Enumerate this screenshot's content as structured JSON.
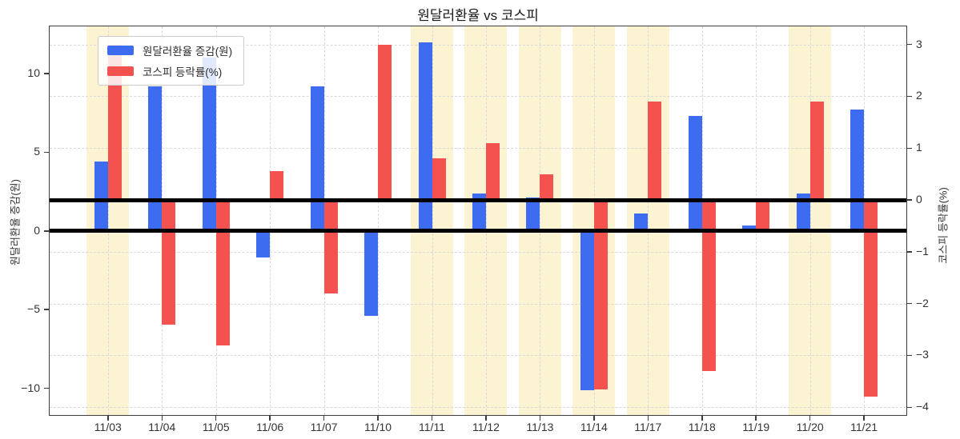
{
  "chart_data": {
    "type": "bar",
    "title": "원달러환율 vs 코스피",
    "categories": [
      "11/03",
      "11/04",
      "11/05",
      "11/06",
      "11/07",
      "11/10",
      "11/11",
      "11/12",
      "11/13",
      "11/14",
      "11/17",
      "11/18",
      "11/19",
      "11/20",
      "11/21"
    ],
    "series": [
      {
        "name": "원달러환율 증감(원)",
        "axis": "left",
        "unit": "원",
        "color": "#3E6CF1",
        "values": [
          4.4,
          9.2,
          11.0,
          -1.7,
          9.2,
          -5.4,
          12.0,
          2.4,
          2.1,
          -10.1,
          1.1,
          7.3,
          0.35,
          2.4,
          7.7
        ]
      },
      {
        "name": "코스피 등락률(%)",
        "axis": "right",
        "unit": "%",
        "color": "#F3524F",
        "values": [
          3.0,
          -2.4,
          -2.8,
          0.55,
          -1.8,
          3.0,
          0.8,
          1.1,
          0.5,
          -3.65,
          1.9,
          -3.3,
          -0.6,
          1.9,
          -3.8
        ]
      }
    ],
    "left_axis": {
      "label": "원달러환율 증감(원)",
      "ticks": [
        10,
        5,
        0,
        -5,
        -10
      ],
      "range": [
        -11.7,
        13.0
      ]
    },
    "right_axis": {
      "label": "코스피 등락률(%)",
      "ticks": [
        3,
        2,
        1,
        0,
        -1,
        -2,
        -3,
        -4
      ],
      "range": [
        -4.15,
        3.35
      ]
    },
    "highlighted_categories": [
      "11/03",
      "11/11",
      "11/12",
      "11/13",
      "11/14",
      "11/17",
      "11/20"
    ],
    "highlight_color": "#FBF3D1",
    "gridline_color": "#D9D9D9",
    "zero_line_color": "#000000",
    "grid": true,
    "legend_position": "upper-left",
    "background": "#FFFFFF"
  }
}
